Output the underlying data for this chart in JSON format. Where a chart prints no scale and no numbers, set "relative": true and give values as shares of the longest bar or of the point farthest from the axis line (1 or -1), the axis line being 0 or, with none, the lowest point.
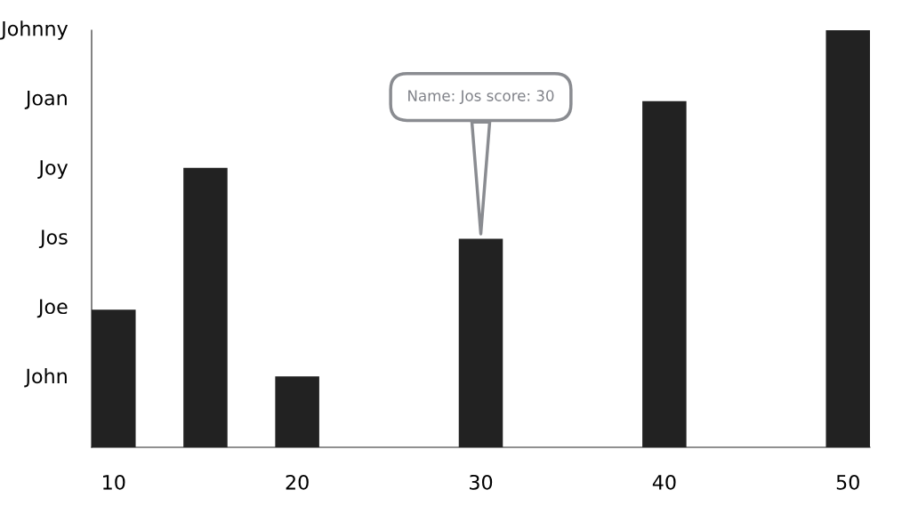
{
  "chart_data": {
    "type": "bar",
    "x": [
      10,
      15,
      20,
      30,
      40,
      50
    ],
    "values": [
      0.33,
      0.67,
      0.17,
      0.5,
      0.83,
      1
    ],
    "color": "#222222",
    "relative": true,
    "xlim": [
      8.8,
      51.2
    ],
    "xticks": [
      10,
      20,
      30,
      40,
      50
    ],
    "grid": false,
    "annotations": [
      "John",
      "Joe",
      "Jos",
      "Joy",
      "Joan",
      "Johnny",
      {
        "text": "Name: Jos score: 30",
        "x": 30,
        "y": 0.5
      }
    ]
  }
}
